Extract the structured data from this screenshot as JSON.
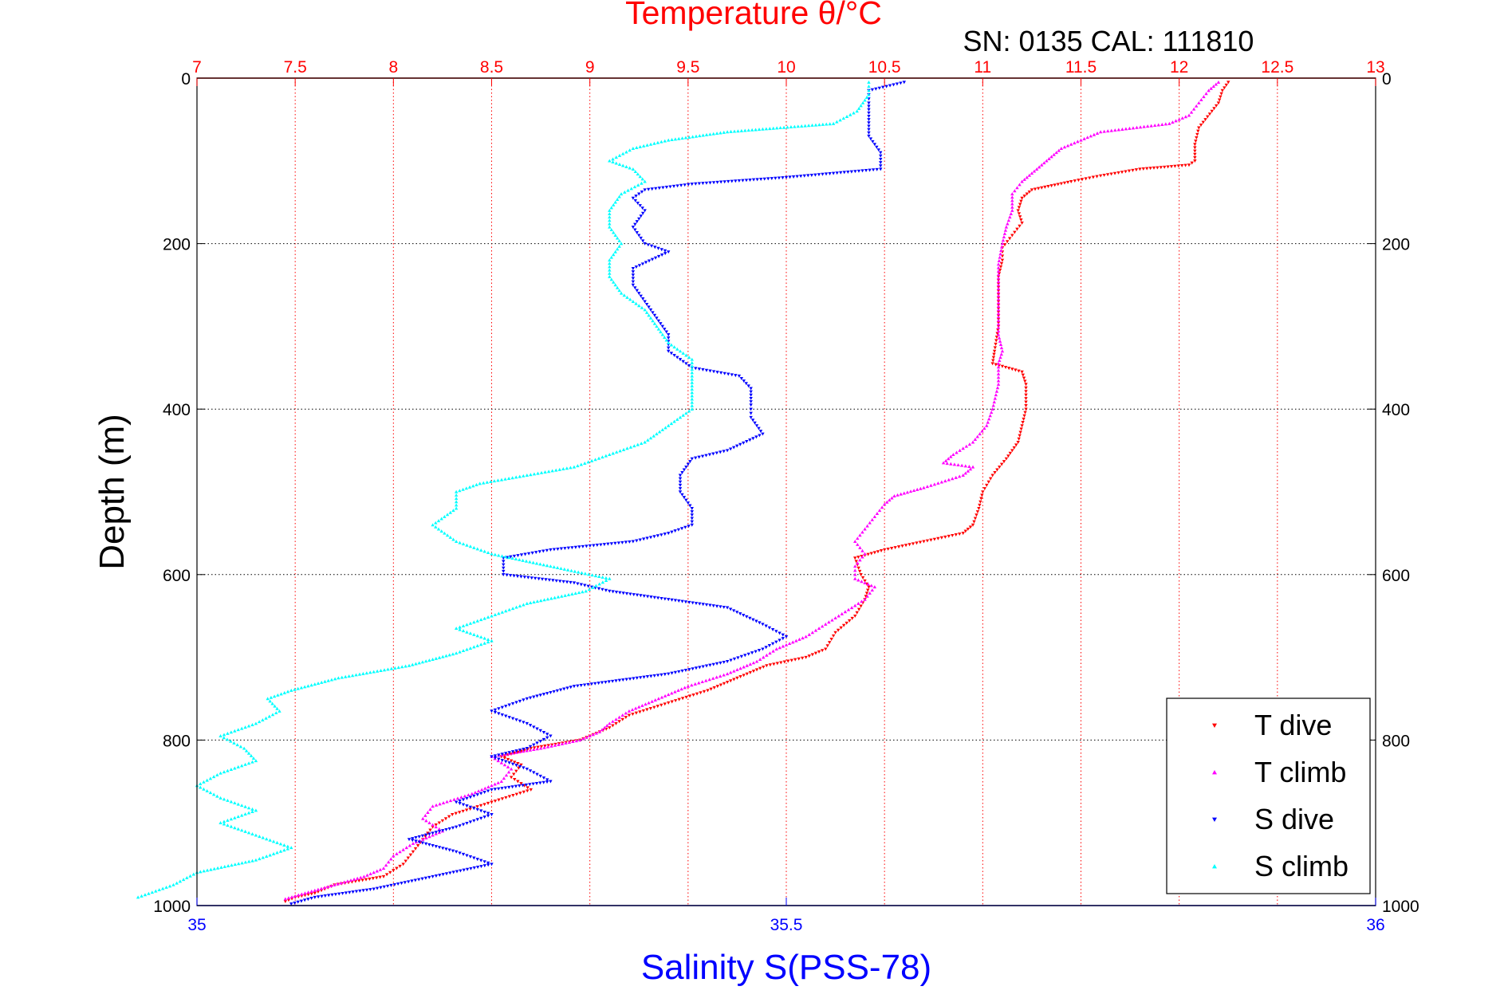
{
  "chart_data": {
    "type": "scatter",
    "title": "Temperature θ/°C",
    "annotation": "SN: 0135  CAL: 111810",
    "xlabel": "Salinity S(PSS-78)",
    "ylabel": "Depth (m)",
    "x_bottom": {
      "label": "Salinity S(PSS-78)",
      "range": [
        35,
        36
      ],
      "ticks": [
        "35",
        "35.5",
        "36"
      ],
      "color": "#0000ff"
    },
    "x_top": {
      "label": "Temperature θ/°C",
      "range": [
        7,
        13
      ],
      "ticks": [
        "7",
        "7.5",
        "8",
        "8.5",
        "9",
        "9.5",
        "10",
        "10.5",
        "11",
        "11.5",
        "12",
        "12.5",
        "13"
      ],
      "color": "#ff0000"
    },
    "y": {
      "label": "Depth (m)",
      "range": [
        0,
        1000
      ],
      "reversed": true,
      "ticks": [
        "0",
        "200",
        "400",
        "600",
        "800",
        "1000"
      ]
    },
    "grid": true,
    "legend_position": "bottom-right",
    "series": [
      {
        "name": "T dive",
        "axis": "temperature",
        "color": "#ff0000",
        "marker": "triangle-down",
        "points": [
          [
            12.25,
            5
          ],
          [
            12.22,
            15
          ],
          [
            12.2,
            30
          ],
          [
            12.1,
            60
          ],
          [
            12.08,
            80
          ],
          [
            12.08,
            100
          ],
          [
            12.05,
            105
          ],
          [
            11.8,
            110
          ],
          [
            11.6,
            118
          ],
          [
            11.45,
            125
          ],
          [
            11.35,
            130
          ],
          [
            11.25,
            135
          ],
          [
            11.2,
            145
          ],
          [
            11.18,
            160
          ],
          [
            11.2,
            175
          ],
          [
            11.15,
            190
          ],
          [
            11.1,
            205
          ],
          [
            11.1,
            220
          ],
          [
            11.08,
            240
          ],
          [
            11.08,
            270
          ],
          [
            11.08,
            300
          ],
          [
            11.06,
            330
          ],
          [
            11.05,
            345
          ],
          [
            11.2,
            355
          ],
          [
            11.22,
            370
          ],
          [
            11.22,
            400
          ],
          [
            11.2,
            420
          ],
          [
            11.18,
            440
          ],
          [
            11.12,
            460
          ],
          [
            11.05,
            480
          ],
          [
            11.0,
            500
          ],
          [
            10.98,
            520
          ],
          [
            10.95,
            540
          ],
          [
            10.9,
            550
          ],
          [
            10.7,
            560
          ],
          [
            10.5,
            570
          ],
          [
            10.35,
            580
          ],
          [
            10.38,
            600
          ],
          [
            10.42,
            615
          ],
          [
            10.4,
            630
          ],
          [
            10.35,
            650
          ],
          [
            10.25,
            670
          ],
          [
            10.2,
            690
          ],
          [
            10.1,
            700
          ],
          [
            9.9,
            710
          ],
          [
            9.8,
            720
          ],
          [
            9.7,
            730
          ],
          [
            9.6,
            740
          ],
          [
            9.4,
            755
          ],
          [
            9.2,
            770
          ],
          [
            9.1,
            785
          ],
          [
            8.95,
            800
          ],
          [
            8.7,
            810
          ],
          [
            8.55,
            820
          ],
          [
            8.65,
            830
          ],
          [
            8.6,
            845
          ],
          [
            8.7,
            860
          ],
          [
            8.5,
            875
          ],
          [
            8.3,
            890
          ],
          [
            8.2,
            905
          ],
          [
            8.15,
            920
          ],
          [
            8.1,
            935
          ],
          [
            8.05,
            950
          ],
          [
            7.95,
            965
          ],
          [
            7.7,
            975
          ],
          [
            7.6,
            985
          ],
          [
            7.5,
            990
          ],
          [
            7.45,
            995
          ]
        ]
      },
      {
        "name": "T climb",
        "axis": "temperature",
        "color": "#ff00ff",
        "marker": "triangle-up",
        "points": [
          [
            12.2,
            5
          ],
          [
            12.15,
            15
          ],
          [
            12.1,
            30
          ],
          [
            12.05,
            45
          ],
          [
            11.95,
            55
          ],
          [
            11.6,
            65
          ],
          [
            11.5,
            75
          ],
          [
            11.4,
            85
          ],
          [
            11.35,
            95
          ],
          [
            11.3,
            105
          ],
          [
            11.25,
            115
          ],
          [
            11.2,
            125
          ],
          [
            11.15,
            140
          ],
          [
            11.15,
            160
          ],
          [
            11.12,
            180
          ],
          [
            11.1,
            200
          ],
          [
            11.08,
            225
          ],
          [
            11.08,
            250
          ],
          [
            11.08,
            280
          ],
          [
            11.08,
            310
          ],
          [
            11.1,
            330
          ],
          [
            11.08,
            345
          ],
          [
            11.08,
            370
          ],
          [
            11.05,
            400
          ],
          [
            11.02,
            420
          ],
          [
            10.95,
            440
          ],
          [
            10.85,
            455
          ],
          [
            10.8,
            465
          ],
          [
            10.95,
            470
          ],
          [
            10.9,
            480
          ],
          [
            10.7,
            495
          ],
          [
            10.55,
            505
          ],
          [
            10.5,
            515
          ],
          [
            10.45,
            530
          ],
          [
            10.4,
            545
          ],
          [
            10.35,
            560
          ],
          [
            10.4,
            575
          ],
          [
            10.35,
            590
          ],
          [
            10.35,
            605
          ],
          [
            10.45,
            615
          ],
          [
            10.4,
            630
          ],
          [
            10.3,
            645
          ],
          [
            10.2,
            660
          ],
          [
            10.1,
            675
          ],
          [
            9.95,
            690
          ],
          [
            9.85,
            705
          ],
          [
            9.7,
            720
          ],
          [
            9.5,
            735
          ],
          [
            9.35,
            750
          ],
          [
            9.2,
            765
          ],
          [
            9.1,
            780
          ],
          [
            9.05,
            790
          ],
          [
            8.95,
            800
          ],
          [
            8.75,
            810
          ],
          [
            8.5,
            820
          ],
          [
            8.6,
            835
          ],
          [
            8.55,
            850
          ],
          [
            8.4,
            865
          ],
          [
            8.2,
            880
          ],
          [
            8.15,
            895
          ],
          [
            8.25,
            910
          ],
          [
            8.1,
            925
          ],
          [
            8.0,
            940
          ],
          [
            7.95,
            955
          ],
          [
            7.85,
            965
          ],
          [
            7.7,
            975
          ],
          [
            7.55,
            985
          ],
          [
            7.45,
            992
          ]
        ]
      },
      {
        "name": "S dive",
        "axis": "salinity",
        "color": "#0000ff",
        "marker": "triangle-down",
        "points": [
          [
            35.6,
            5
          ],
          [
            35.57,
            15
          ],
          [
            35.57,
            30
          ],
          [
            35.57,
            50
          ],
          [
            35.57,
            70
          ],
          [
            35.58,
            90
          ],
          [
            35.58,
            110
          ],
          [
            35.5,
            120
          ],
          [
            35.42,
            128
          ],
          [
            35.38,
            135
          ],
          [
            35.37,
            145
          ],
          [
            35.38,
            160
          ],
          [
            35.37,
            180
          ],
          [
            35.38,
            200
          ],
          [
            35.4,
            210
          ],
          [
            35.37,
            230
          ],
          [
            35.37,
            250
          ],
          [
            35.38,
            270
          ],
          [
            35.39,
            290
          ],
          [
            35.4,
            310
          ],
          [
            35.4,
            330
          ],
          [
            35.42,
            350
          ],
          [
            35.46,
            360
          ],
          [
            35.47,
            375
          ],
          [
            35.47,
            395
          ],
          [
            35.47,
            410
          ],
          [
            35.48,
            430
          ],
          [
            35.45,
            450
          ],
          [
            35.42,
            460
          ],
          [
            35.41,
            480
          ],
          [
            35.41,
            500
          ],
          [
            35.42,
            520
          ],
          [
            35.42,
            540
          ],
          [
            35.4,
            550
          ],
          [
            35.37,
            560
          ],
          [
            35.3,
            570
          ],
          [
            35.26,
            580
          ],
          [
            35.26,
            600
          ],
          [
            35.32,
            610
          ],
          [
            35.35,
            620
          ],
          [
            35.4,
            630
          ],
          [
            35.45,
            640
          ],
          [
            35.48,
            660
          ],
          [
            35.5,
            675
          ],
          [
            35.48,
            690
          ],
          [
            35.45,
            705
          ],
          [
            35.4,
            720
          ],
          [
            35.32,
            735
          ],
          [
            35.28,
            750
          ],
          [
            35.25,
            765
          ],
          [
            35.28,
            780
          ],
          [
            35.3,
            795
          ],
          [
            35.28,
            810
          ],
          [
            35.25,
            820
          ],
          [
            35.28,
            835
          ],
          [
            35.3,
            850
          ],
          [
            35.25,
            860
          ],
          [
            35.22,
            875
          ],
          [
            35.25,
            890
          ],
          [
            35.22,
            905
          ],
          [
            35.18,
            920
          ],
          [
            35.22,
            935
          ],
          [
            35.25,
            950
          ],
          [
            35.2,
            965
          ],
          [
            35.15,
            980
          ],
          [
            35.1,
            990
          ],
          [
            35.08,
            998
          ]
        ]
      },
      {
        "name": "S climb",
        "axis": "salinity",
        "color": "#00ffff",
        "marker": "triangle-up",
        "points": [
          [
            35.57,
            5
          ],
          [
            35.57,
            20
          ],
          [
            35.56,
            40
          ],
          [
            35.54,
            55
          ],
          [
            35.45,
            65
          ],
          [
            35.4,
            75
          ],
          [
            35.37,
            85
          ],
          [
            35.35,
            100
          ],
          [
            35.37,
            110
          ],
          [
            35.38,
            125
          ],
          [
            35.36,
            140
          ],
          [
            35.35,
            160
          ],
          [
            35.35,
            180
          ],
          [
            35.36,
            200
          ],
          [
            35.35,
            220
          ],
          [
            35.35,
            240
          ],
          [
            35.36,
            260
          ],
          [
            35.38,
            280
          ],
          [
            35.39,
            300
          ],
          [
            35.4,
            320
          ],
          [
            35.42,
            340
          ],
          [
            35.42,
            360
          ],
          [
            35.42,
            380
          ],
          [
            35.42,
            400
          ],
          [
            35.4,
            420
          ],
          [
            35.38,
            440
          ],
          [
            35.35,
            455
          ],
          [
            35.32,
            470
          ],
          [
            35.28,
            480
          ],
          [
            35.24,
            490
          ],
          [
            35.22,
            500
          ],
          [
            35.22,
            520
          ],
          [
            35.2,
            540
          ],
          [
            35.22,
            560
          ],
          [
            35.25,
            575
          ],
          [
            35.3,
            590
          ],
          [
            35.35,
            605
          ],
          [
            35.33,
            620
          ],
          [
            35.28,
            635
          ],
          [
            35.25,
            650
          ],
          [
            35.22,
            665
          ],
          [
            35.25,
            680
          ],
          [
            35.22,
            695
          ],
          [
            35.18,
            710
          ],
          [
            35.12,
            725
          ],
          [
            35.08,
            740
          ],
          [
            35.06,
            750
          ],
          [
            35.07,
            765
          ],
          [
            35.05,
            780
          ],
          [
            35.02,
            795
          ],
          [
            35.04,
            810
          ],
          [
            35.05,
            825
          ],
          [
            35.02,
            840
          ],
          [
            35.0,
            855
          ],
          [
            35.02,
            870
          ],
          [
            35.05,
            885
          ],
          [
            35.02,
            900
          ],
          [
            35.05,
            915
          ],
          [
            35.08,
            930
          ],
          [
            35.05,
            945
          ],
          [
            35.0,
            960
          ],
          [
            34.98,
            975
          ],
          [
            34.95,
            990
          ]
        ]
      }
    ]
  }
}
